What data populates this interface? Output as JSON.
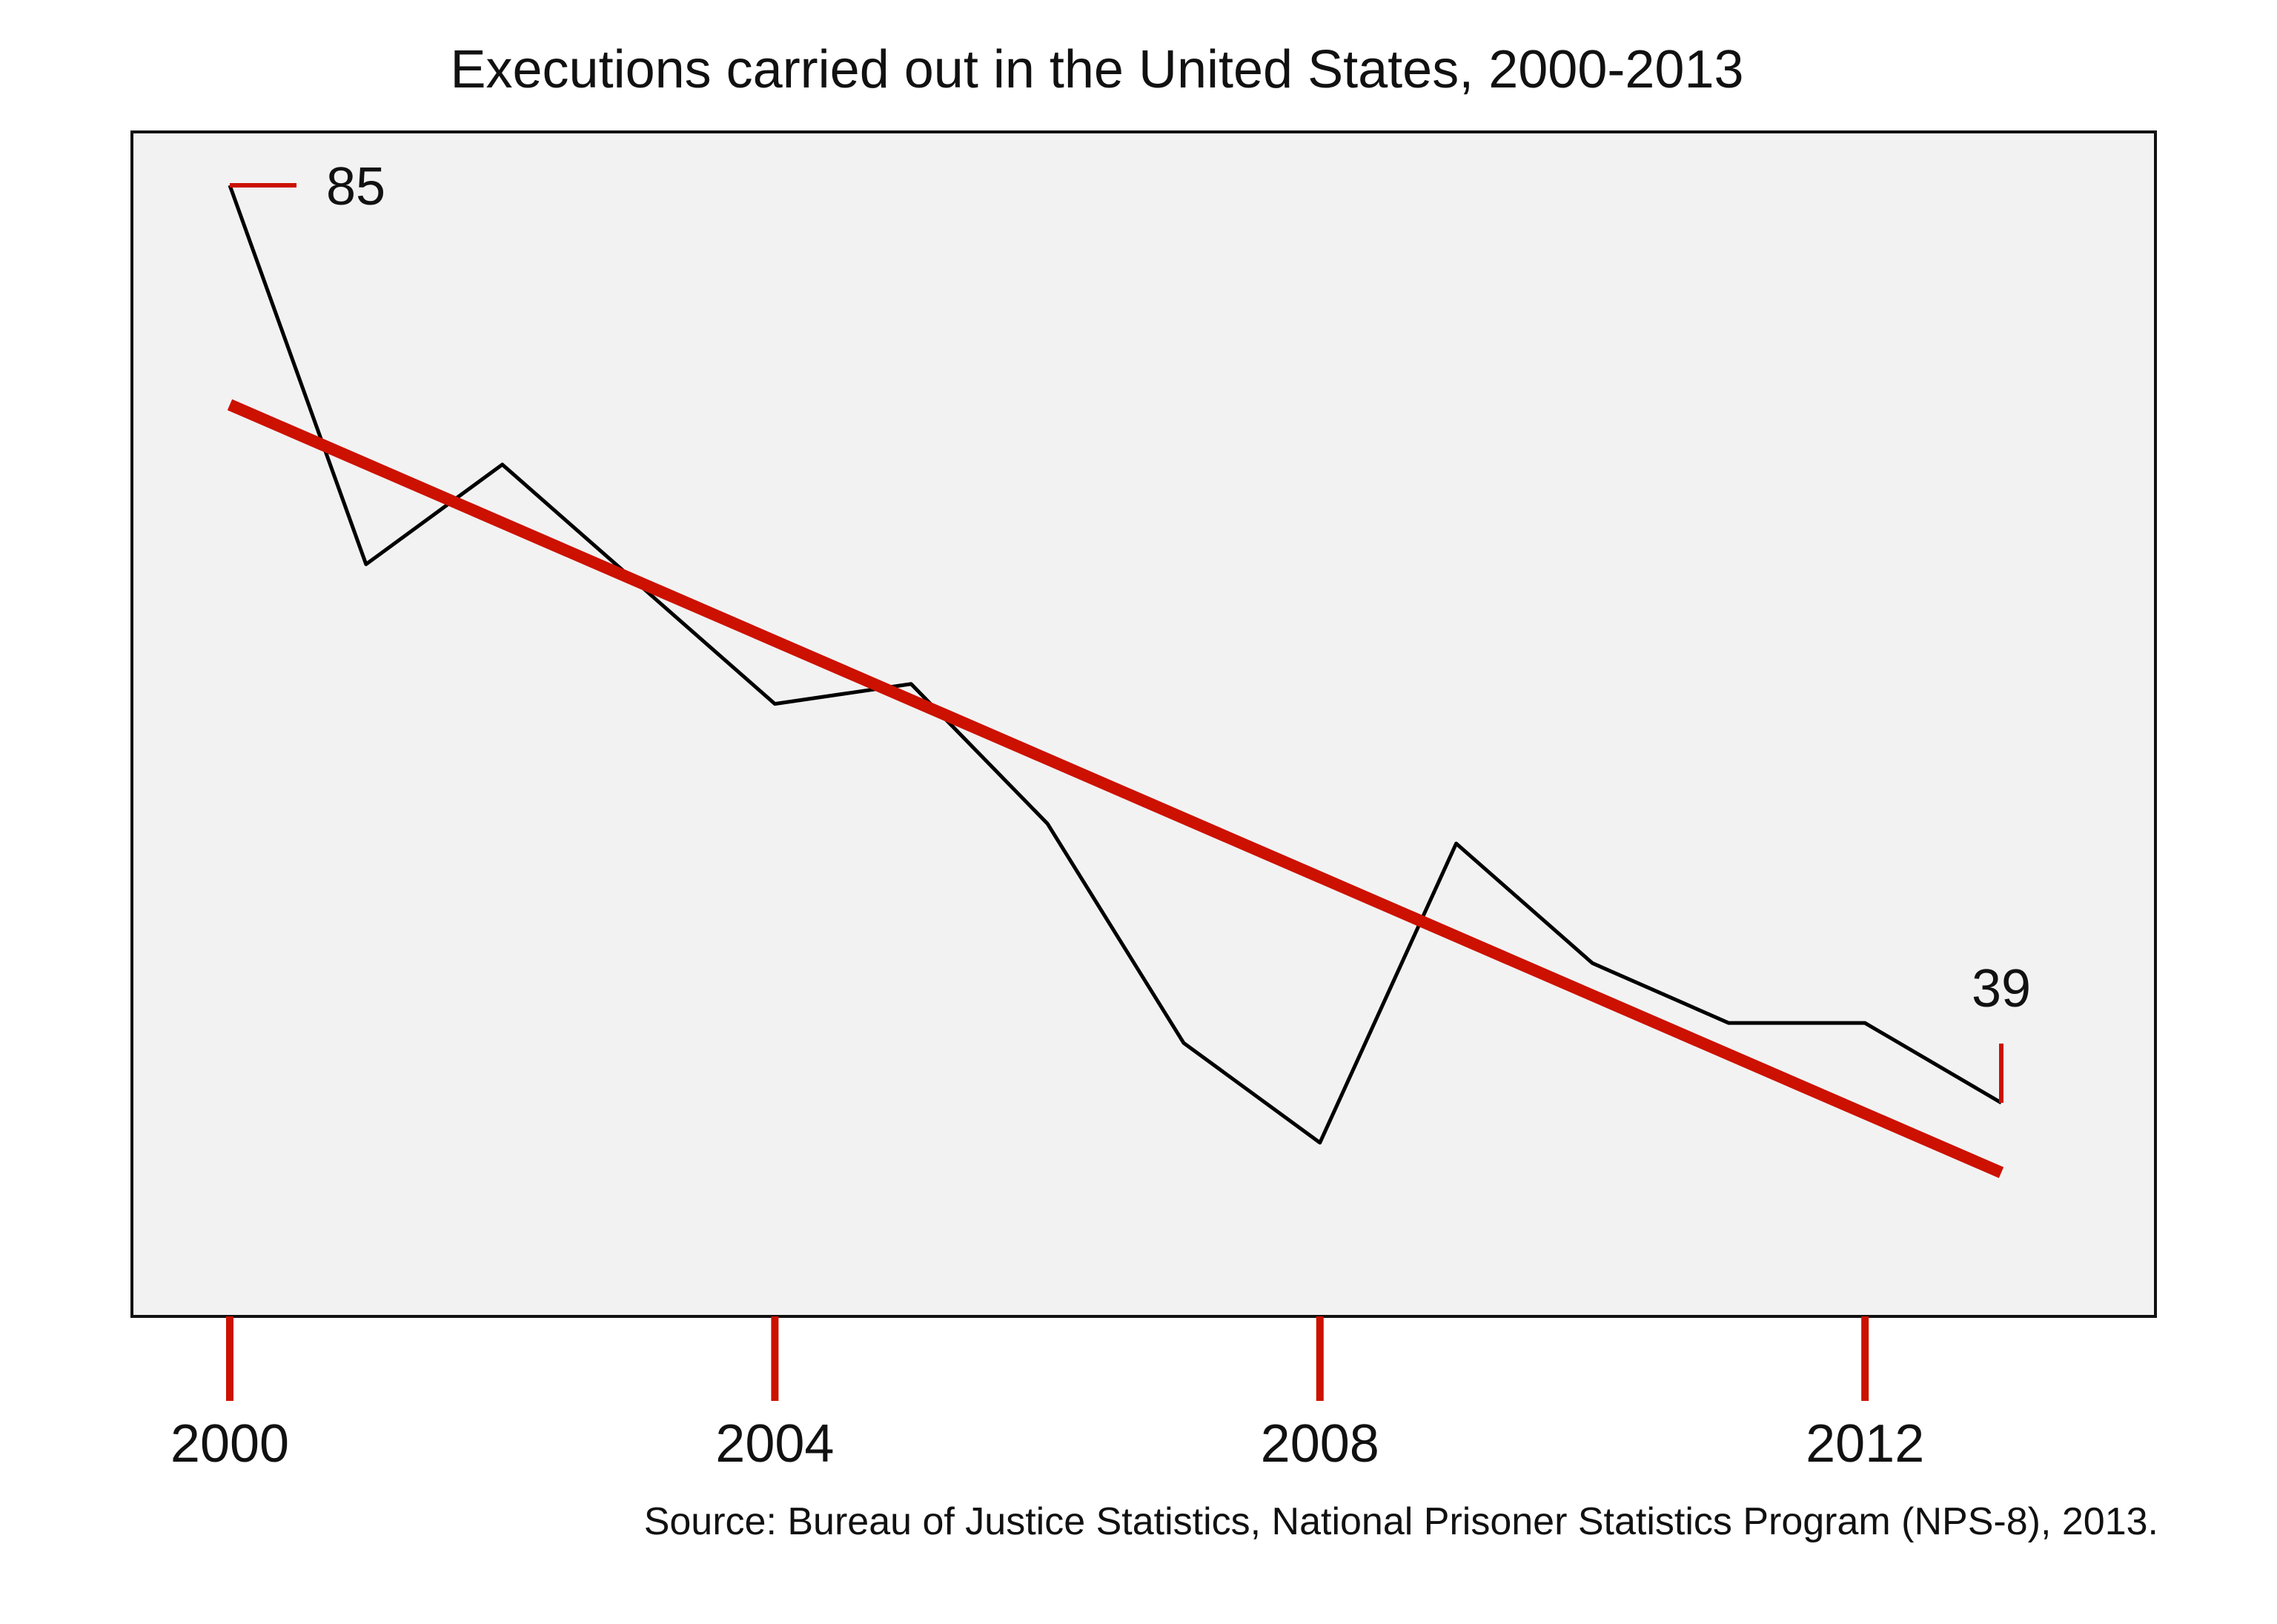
{
  "chart_data": {
    "type": "line",
    "title": "Executions carried out in the United States, 2000-2013",
    "source": "Source: Bureau of Justice Statistics, National Prisoner Statistics Program (NPS-8), 2013.",
    "x_ticks": [
      2000,
      2004,
      2008,
      2012
    ],
    "xlim": [
      2000,
      2013
    ],
    "ylim": [
      30,
      85
    ],
    "grid": false,
    "series": [
      {
        "values_x": [
          2000,
          2001,
          2002,
          2003,
          2004,
          2005,
          2006,
          2007,
          2008,
          2009,
          2010,
          2011,
          2012,
          2013
        ],
        "values_y": [
          85,
          66,
          71,
          65,
          59,
          60,
          53,
          42,
          37,
          52,
          46,
          43,
          43,
          39
        ],
        "color": "#000000"
      }
    ],
    "trend": {
      "x": [
        2000,
        2013
      ],
      "y": [
        74,
        35.5
      ],
      "color": "#cc1100"
    },
    "annotations": [
      {
        "text": "85",
        "x": 2000,
        "y": 85
      },
      {
        "text": "39",
        "x": 2013,
        "y": 39
      }
    ],
    "colors": {
      "accent": "#cc1100",
      "plot_bg": "#f2f2f2",
      "line": "#000000"
    }
  }
}
